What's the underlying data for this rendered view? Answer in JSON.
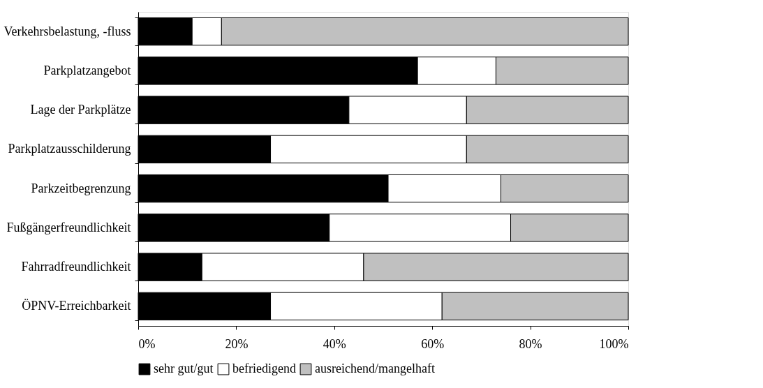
{
  "chart_data": {
    "type": "bar",
    "orientation": "horizontal",
    "stacked": true,
    "categories": [
      "Verkehrsbelastung, -fluss",
      "Parkplatzangebot",
      "Lage der Parkplätze",
      "Parkplatzausschilderung",
      "Parkzeitbegrenzung",
      "Fußgängerfreundlichkeit",
      "Fahrradfreundlichkeit",
      "ÖPNV-Erreichbarkeit"
    ],
    "series": [
      {
        "name": "sehr gut/gut",
        "color": "#000000",
        "values": [
          11,
          57,
          43,
          27,
          51,
          39,
          13,
          27
        ]
      },
      {
        "name": "befriedigend",
        "color": "#ffffff",
        "values": [
          6,
          16,
          24,
          40,
          23,
          37,
          33,
          35
        ]
      },
      {
        "name": "ausreichend/mangelhaft",
        "color": "#c0c0c0",
        "values": [
          83,
          27,
          33,
          33,
          26,
          24,
          54,
          38
        ]
      }
    ],
    "xlim": [
      0,
      100
    ],
    "xticks": [
      {
        "value": 0,
        "label": "0%"
      },
      {
        "value": 20,
        "label": "20%"
      },
      {
        "value": 40,
        "label": "40%"
      },
      {
        "value": 60,
        "label": "60%"
      },
      {
        "value": 80,
        "label": "80%"
      },
      {
        "value": 100,
        "label": "100%"
      }
    ],
    "grid": false,
    "legend": "bottom"
  }
}
